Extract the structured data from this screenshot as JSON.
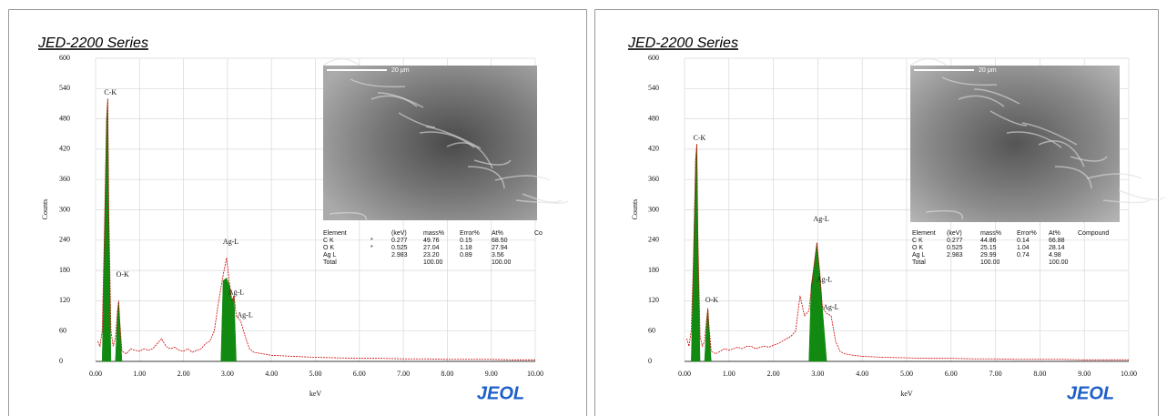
{
  "chart_data": [
    {
      "type": "spectrum",
      "title": "JED-2200 Series",
      "x_label": "keV",
      "y_label": "Counts",
      "xlim": [
        0,
        10
      ],
      "ylim": [
        0,
        600
      ],
      "grid": true,
      "xticks": [
        {
          "value": 0,
          "label": "0.00"
        },
        {
          "value": 1,
          "label": "1.00"
        },
        {
          "value": 2,
          "label": "2.00"
        },
        {
          "value": 3,
          "label": "3.00"
        },
        {
          "value": 4,
          "label": "4.00"
        },
        {
          "value": 5,
          "label": "5.00"
        },
        {
          "value": 6,
          "label": "6.00"
        },
        {
          "value": 7,
          "label": "7.00"
        },
        {
          "value": 8,
          "label": "8.00"
        },
        {
          "value": 9,
          "label": "9.00"
        },
        {
          "value": 10,
          "label": "10.00"
        }
      ],
      "yticks": [
        0,
        60,
        120,
        180,
        240,
        300,
        360,
        420,
        480,
        540,
        600
      ],
      "series": [
        {
          "color": "#cc0000",
          "x": [
            0.05,
            0.1,
            0.15,
            0.2,
            0.25,
            0.277,
            0.3,
            0.35,
            0.4,
            0.45,
            0.5,
            0.525,
            0.55,
            0.6,
            0.7,
            0.8,
            0.9,
            1.0,
            1.1,
            1.2,
            1.3,
            1.4,
            1.5,
            1.6,
            1.7,
            1.8,
            1.9,
            2.0,
            2.1,
            2.2,
            2.3,
            2.4,
            2.5,
            2.6,
            2.7,
            2.8,
            2.9,
            2.98,
            3.05,
            3.1,
            3.15,
            3.2,
            3.3,
            3.4,
            3.5,
            3.6,
            3.8,
            4.0,
            4.5,
            5.0,
            5.5,
            6.0,
            6.5,
            7.0,
            7.5,
            8.0,
            8.5,
            9.0,
            9.5,
            10.0
          ],
          "values": [
            40,
            30,
            60,
            250,
            480,
            520,
            300,
            60,
            30,
            45,
            100,
            120,
            80,
            20,
            15,
            25,
            22,
            20,
            25,
            22,
            25,
            35,
            45,
            30,
            25,
            28,
            22,
            20,
            25,
            18,
            22,
            25,
            35,
            40,
            60,
            120,
            170,
            205,
            150,
            120,
            130,
            90,
            80,
            50,
            25,
            18,
            15,
            12,
            10,
            8,
            7,
            6,
            6,
            5,
            5,
            4,
            4,
            4,
            3,
            3
          ]
        }
      ],
      "peaks": {
        "color": "#128a12",
        "x": [
          0.15,
          0.2,
          0.25,
          0.277,
          0.3,
          0.35,
          null,
          0.45,
          0.5,
          0.525,
          0.55,
          0.6,
          null,
          2.85,
          2.9,
          2.98,
          3.05,
          3.1,
          3.15,
          3.2
        ],
        "values": [
          0,
          250,
          480,
          520,
          300,
          0,
          null,
          0,
          100,
          120,
          80,
          0,
          null,
          0,
          160,
          165,
          150,
          120,
          130,
          0
        ]
      },
      "annotations": [
        {
          "text": "C-K",
          "x": 0.277,
          "y": 520
        },
        {
          "text": "O-K",
          "x": 0.55,
          "y": 160
        },
        {
          "text": "Ag-L",
          "x": 2.98,
          "y": 225
        },
        {
          "text": "Ag-L",
          "x": 3.1,
          "y": 125
        },
        {
          "text": "Ag-L",
          "x": 3.3,
          "y": 80
        }
      ],
      "image": {
        "scale_label": "20 μm"
      },
      "table": {
        "header": [
          "Element",
          "(keV)",
          "mass%",
          "Error%",
          "At%",
          "Co"
        ],
        "rows": [
          [
            "C K",
            "*",
            "0.277",
            "49.76",
            "0.15",
            "68.50"
          ],
          [
            "O K",
            "*",
            "0.525",
            "27.04",
            "1.18",
            "27.94"
          ],
          [
            "Ag L",
            "2.983",
            "23.20",
            "0.89",
            "3.56"
          ],
          [
            "Total",
            "100.00",
            "100.00"
          ]
        ]
      },
      "logo": "JEOL"
    },
    {
      "type": "spectrum",
      "title": "JED-2200 Series",
      "x_label": "keV",
      "y_label": "Counts",
      "xlim": [
        0,
        10
      ],
      "ylim": [
        0,
        600
      ],
      "grid": true,
      "xticks": [
        {
          "value": 0,
          "label": "0.00"
        },
        {
          "value": 1,
          "label": "1.00"
        },
        {
          "value": 2,
          "label": "2.00"
        },
        {
          "value": 3,
          "label": "3.00"
        },
        {
          "value": 4,
          "label": "4.00"
        },
        {
          "value": 5,
          "label": "5.00"
        },
        {
          "value": 6,
          "label": "6.00"
        },
        {
          "value": 7,
          "label": "7.00"
        },
        {
          "value": 8,
          "label": "8.00"
        },
        {
          "value": 9,
          "label": "9.00"
        },
        {
          "value": 10,
          "label": "10.00"
        }
      ],
      "yticks": [
        0,
        60,
        120,
        180,
        240,
        300,
        360,
        420,
        480,
        540,
        600
      ],
      "series": [
        {
          "color": "#cc0000",
          "x": [
            0.05,
            0.1,
            0.15,
            0.2,
            0.25,
            0.277,
            0.3,
            0.35,
            0.4,
            0.45,
            0.5,
            0.525,
            0.55,
            0.6,
            0.7,
            0.8,
            0.9,
            1.0,
            1.1,
            1.2,
            1.3,
            1.4,
            1.5,
            1.6,
            1.7,
            1.8,
            1.9,
            2.0,
            2.1,
            2.2,
            2.3,
            2.4,
            2.5,
            2.6,
            2.7,
            2.8,
            2.9,
            2.98,
            3.05,
            3.1,
            3.15,
            3.2,
            3.3,
            3.4,
            3.5,
            3.6,
            3.8,
            4.0,
            4.5,
            5.0,
            5.5,
            6.0,
            6.5,
            7.0,
            7.5,
            8.0,
            8.5,
            9.0,
            9.5,
            10.0
          ],
          "values": [
            45,
            30,
            60,
            200,
            400,
            430,
            250,
            50,
            30,
            40,
            85,
            105,
            70,
            20,
            15,
            20,
            25,
            22,
            25,
            28,
            25,
            30,
            30,
            25,
            28,
            30,
            28,
            32,
            35,
            40,
            45,
            50,
            60,
            130,
            90,
            100,
            180,
            235,
            170,
            110,
            100,
            95,
            90,
            40,
            20,
            15,
            12,
            10,
            8,
            7,
            6,
            6,
            5,
            5,
            4,
            4,
            4,
            3,
            3,
            3
          ]
        }
      ],
      "peaks": {
        "color": "#128a12",
        "x": [
          0.15,
          0.2,
          0.25,
          0.277,
          0.3,
          0.35,
          null,
          0.45,
          0.5,
          0.525,
          0.55,
          0.6,
          null,
          2.8,
          2.85,
          2.9,
          2.98,
          3.05,
          3.1,
          3.2
        ],
        "values": [
          0,
          200,
          400,
          430,
          250,
          0,
          null,
          0,
          85,
          105,
          70,
          0,
          null,
          0,
          150,
          180,
          235,
          170,
          110,
          0
        ]
      },
      "annotations": [
        {
          "text": "C-K",
          "x": 0.277,
          "y": 430
        },
        {
          "text": "O-K",
          "x": 0.55,
          "y": 110
        },
        {
          "text": "Ag-L",
          "x": 2.98,
          "y": 270
        },
        {
          "text": "Ag-L",
          "x": 3.05,
          "y": 150
        },
        {
          "text": "Ag-L",
          "x": 3.2,
          "y": 95
        }
      ],
      "image": {
        "scale_label": "20 μm"
      },
      "table": {
        "header": [
          "Element",
          "(keV)",
          "mass%",
          "Error%",
          "At%",
          "Compound"
        ],
        "rows": [
          [
            "C K",
            "0.277",
            "44.86",
            "0.14",
            "66.88"
          ],
          [
            "O K",
            "0.525",
            "25.15",
            "1.04",
            "28.14"
          ],
          [
            "Ag L",
            "2.983",
            "29.99",
            "0.74",
            "4.98"
          ],
          [
            "Total",
            "100.00",
            "100.00"
          ]
        ]
      },
      "logo": "JEOL"
    }
  ]
}
